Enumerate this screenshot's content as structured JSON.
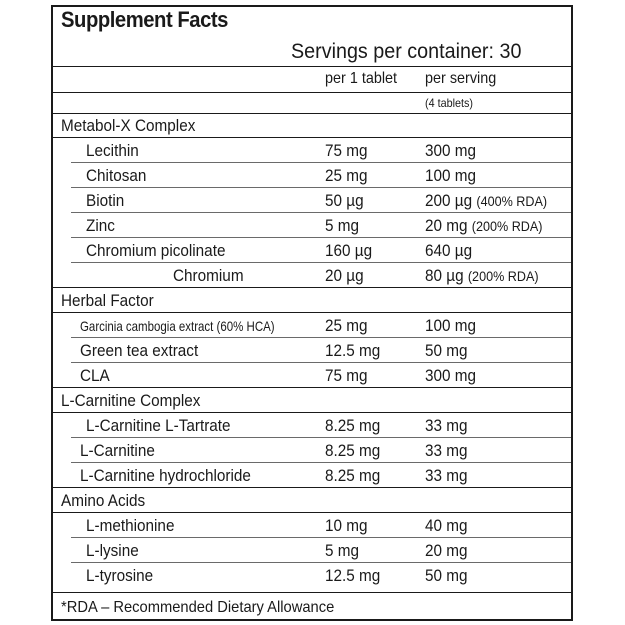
{
  "title": "Supplement Facts",
  "servings": "Servings per container: 30",
  "columns": {
    "per_tablet": "per 1 tablet",
    "per_serving": "per serving",
    "serving_note": "(4 tablets)"
  },
  "rows": [
    {
      "type": "group",
      "name": "Metabol-X Complex"
    },
    {
      "type": "item",
      "name": "Lecithin",
      "per_tablet": "75 mg",
      "per_serving": "300 mg",
      "rda": ""
    },
    {
      "type": "item",
      "name": "Chitosan",
      "per_tablet": "25 mg",
      "per_serving": "100 mg",
      "rda": ""
    },
    {
      "type": "item",
      "name": "Biotin",
      "per_tablet": "50 µg",
      "per_serving": "200 µg",
      "rda": "(400% RDA)"
    },
    {
      "type": "item",
      "name": "Zinc",
      "per_tablet": "5 mg",
      "per_serving": "20 mg",
      "rda": "(200% RDA)"
    },
    {
      "type": "item",
      "name": "Chromium picolinate",
      "per_tablet": "160 µg",
      "per_serving": "640 µg",
      "rda": ""
    },
    {
      "type": "subitem",
      "name": "Chromium",
      "per_tablet": "20 µg",
      "per_serving": "80 µg",
      "rda": "(200% RDA)"
    },
    {
      "type": "group",
      "name": "Herbal Factor"
    },
    {
      "type": "item_small",
      "name": "Garcinia cambogia extract (60% HCA)",
      "per_tablet": "25 mg",
      "per_serving": "100 mg",
      "rda": ""
    },
    {
      "type": "item",
      "name": "Green tea extract",
      "per_tablet": "12.5 mg",
      "per_serving": "50 mg",
      "rda": ""
    },
    {
      "type": "item",
      "name": "CLA",
      "per_tablet": "75 mg",
      "per_serving": "300 mg",
      "rda": ""
    },
    {
      "type": "group",
      "name": "L-Carnitine Complex"
    },
    {
      "type": "item",
      "name": "L-Carnitine L-Tartrate",
      "per_tablet": "8.25 mg",
      "per_serving": "33 mg",
      "rda": ""
    },
    {
      "type": "item",
      "name": "L-Carnitine",
      "per_tablet": "8.25 mg",
      "per_serving": "33 mg",
      "rda": ""
    },
    {
      "type": "item",
      "name": "L-Carnitine hydrochloride",
      "per_tablet": "8.25 mg",
      "per_serving": "33 mg",
      "rda": ""
    },
    {
      "type": "group",
      "name": "Amino Acids"
    },
    {
      "type": "item",
      "name": "L-methionine",
      "per_tablet": "10 mg",
      "per_serving": "40 mg",
      "rda": ""
    },
    {
      "type": "item",
      "name": "L-lysine",
      "per_tablet": "5 mg",
      "per_serving": "20 mg",
      "rda": ""
    },
    {
      "type": "item",
      "name": "L-tyrosine",
      "per_tablet": "12.5 mg",
      "per_serving": "50 mg",
      "rda": ""
    }
  ],
  "footer": "*RDA – Recommended Dietary Allowance"
}
